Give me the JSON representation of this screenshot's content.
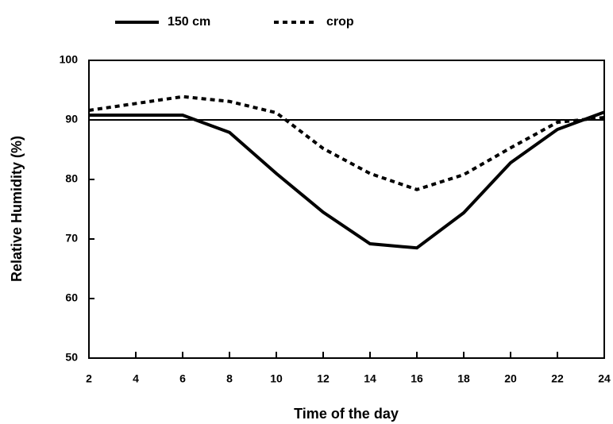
{
  "chart_data": {
    "type": "line",
    "xlabel": "Time of the day",
    "ylabel": "Relative Humidity (%)",
    "x": [
      2,
      6,
      8,
      10,
      12,
      14,
      16,
      18,
      20,
      22,
      24
    ],
    "series": [
      {
        "name": "150 cm",
        "color": "#000000",
        "dash": "solid",
        "values": [
          90.8,
          90.8,
          87.9,
          81,
          74.5,
          69.2,
          68.5,
          74.4,
          82.8,
          88.4,
          91.3
        ]
      },
      {
        "name": "crop",
        "color": "#000000",
        "dash": "dotted",
        "values": [
          91.6,
          93.9,
          93.1,
          91.2,
          85.2,
          81,
          78.3,
          80.8,
          85.3,
          89.6,
          90.4
        ]
      }
    ],
    "hline": 90,
    "xlim": [
      2,
      24
    ],
    "xticks": [
      2,
      4,
      6,
      8,
      10,
      12,
      14,
      16,
      18,
      20,
      22,
      24
    ],
    "ylim": [
      50,
      100
    ],
    "yticks": [
      50,
      60,
      70,
      80,
      90,
      100
    ],
    "grid": false,
    "legend": "top"
  }
}
